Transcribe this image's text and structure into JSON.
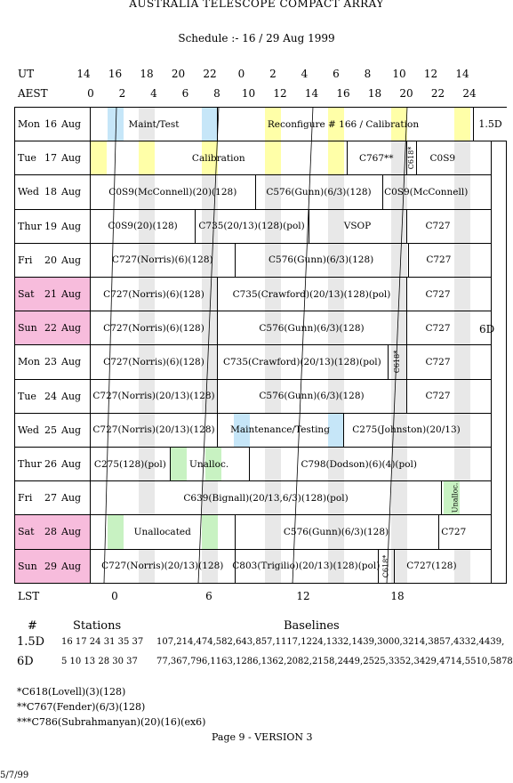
{
  "header": {
    "title": "AUSTRALIA TELESCOPE COMPACT ARRAY",
    "subtitle": "Schedule :- 16 / 29 Aug 1999"
  },
  "axes": {
    "ut_label": "UT",
    "aest_label": "AEST",
    "lst_label": "LST",
    "ut_ticks": [
      "14",
      "16",
      "18",
      "20",
      "22",
      "0",
      "2",
      "4",
      "6",
      "8",
      "10",
      "12",
      "14"
    ],
    "aest_ticks": [
      "0",
      "2",
      "4",
      "6",
      "8",
      "10",
      "12",
      "14",
      "16",
      "18",
      "20",
      "22",
      "24"
    ],
    "lst_ticks": [
      "0",
      "6",
      "12",
      "18"
    ]
  },
  "colors": {
    "yellow": "#ffffa8",
    "blue": "#c6e6f8",
    "green": "#c8f2c2",
    "grey": "#e8e8e8",
    "weekend": "#f7bcdc"
  },
  "rows": [
    {
      "day": "Mon",
      "num": "16",
      "month": "Aug",
      "weekend": false,
      "segments": [
        {
          "from": 0,
          "to": 8,
          "label": "Maint/Test"
        },
        {
          "from": 8,
          "to": 24,
          "label": "Reconfigure # 166 / Calibration"
        }
      ],
      "stripes": "test"
    },
    {
      "day": "Tue",
      "num": "17",
      "month": "Aug",
      "weekend": false,
      "segments": [
        {
          "from": 0,
          "to": 16.2,
          "label": "Calibration"
        },
        {
          "from": 16.2,
          "to": 20,
          "label": "C767**"
        },
        {
          "from": 20,
          "to": 20.6,
          "label": "C618*",
          "vertical": true
        },
        {
          "from": 20.6,
          "to": 24,
          "label": "C0S9"
        }
      ],
      "stripes": "cal"
    },
    {
      "day": "Wed",
      "num": "18",
      "month": "Aug",
      "weekend": false,
      "segments": [
        {
          "from": 0,
          "to": 10.4,
          "label": "C0S9(McConnell)(20)(128)"
        },
        {
          "from": 10.4,
          "to": 18.5,
          "label": "C576(Gunn)(6/3)(128)"
        },
        {
          "from": 18.5,
          "to": 24,
          "label": "C0S9(McConnell)"
        }
      ],
      "stripes": "grey"
    },
    {
      "day": "Thur",
      "num": "19",
      "month": "Aug",
      "weekend": false,
      "segments": [
        {
          "from": 0,
          "to": 6.6,
          "label": "C0S9(20)(128)"
        },
        {
          "from": 6.6,
          "to": 13.8,
          "label": "C735(20/13)(128)(pol)"
        },
        {
          "from": 13.8,
          "to": 20,
          "label": "VSOP"
        },
        {
          "from": 20,
          "to": 24,
          "label": "C727"
        }
      ],
      "stripes": "grey"
    },
    {
      "day": "Fri",
      "num": "20",
      "month": "Aug",
      "weekend": false,
      "segments": [
        {
          "from": 0,
          "to": 9.1,
          "label": "C727(Norris)(6)(128)"
        },
        {
          "from": 9.1,
          "to": 20.1,
          "label": "C576(Gunn)(6/3)(128)"
        },
        {
          "from": 20.1,
          "to": 24,
          "label": "C727"
        }
      ],
      "stripes": "grey"
    },
    {
      "day": "Sat",
      "num": "21",
      "month": "Aug",
      "weekend": true,
      "segments": [
        {
          "from": 0,
          "to": 8,
          "label": "C727(Norris)(6)(128)"
        },
        {
          "from": 8,
          "to": 20,
          "label": "C735(Crawford)(20/13)(128)(pol)"
        },
        {
          "from": 20,
          "to": 24,
          "label": "C727"
        }
      ],
      "stripes": "grey"
    },
    {
      "day": "Sun",
      "num": "22",
      "month": "Aug",
      "weekend": true,
      "segments": [
        {
          "from": 0,
          "to": 8,
          "label": "C727(Norris)(6)(128)"
        },
        {
          "from": 8,
          "to": 20,
          "label": "C576(Gunn)(6/3)(128)"
        },
        {
          "from": 20,
          "to": 24,
          "label": "C727"
        }
      ],
      "stripes": "grey"
    },
    {
      "day": "Mon",
      "num": "23",
      "month": "Aug",
      "weekend": false,
      "segments": [
        {
          "from": 0,
          "to": 8,
          "label": "C727(Norris)(6)(128)"
        },
        {
          "from": 8,
          "to": 18.8,
          "label": "C735(Crawford)(20/13)(128)(pol)"
        },
        {
          "from": 18.8,
          "to": 20,
          "label": "C618*",
          "vertical": true
        },
        {
          "from": 20,
          "to": 24,
          "label": "C727"
        }
      ],
      "stripes": "grey"
    },
    {
      "day": "Tue",
      "num": "24",
      "month": "Aug",
      "weekend": false,
      "segments": [
        {
          "from": 0,
          "to": 8,
          "label": "C727(Norris)(20/13)(128)"
        },
        {
          "from": 8,
          "to": 20,
          "label": "C576(Gunn)(6/3)(128)"
        },
        {
          "from": 20,
          "to": 24,
          "label": "C727"
        }
      ],
      "stripes": "grey"
    },
    {
      "day": "Wed",
      "num": "25",
      "month": "Aug",
      "weekend": false,
      "segments": [
        {
          "from": 0,
          "to": 8,
          "label": "C727(Norris)(20/13)(128)"
        },
        {
          "from": 8,
          "to": 16,
          "label": "Maintenance/Testing"
        },
        {
          "from": 16,
          "to": 24,
          "label": "C275(Johnston)(20/13)"
        }
      ],
      "stripes": "maint"
    },
    {
      "day": "Thur",
      "num": "26",
      "month": "Aug",
      "weekend": false,
      "segments": [
        {
          "from": 0,
          "to": 5,
          "label": "C275(128)(pol)"
        },
        {
          "from": 5,
          "to": 10,
          "label": "Unalloc."
        },
        {
          "from": 10,
          "to": 24,
          "label": "C798(Dodson)(6)(4)(pol)"
        }
      ],
      "stripes": "unalloc26"
    },
    {
      "day": "Fri",
      "num": "27",
      "month": "Aug",
      "weekend": false,
      "segments": [
        {
          "from": 0,
          "to": 22.2,
          "label": "C639(Bignall)(20/13,6/3)(128)(pol)"
        },
        {
          "from": 22.2,
          "to": 24,
          "label": "Unalloc.",
          "vertical": true
        }
      ],
      "stripes": "fri27"
    },
    {
      "day": "Sat",
      "num": "28",
      "month": "Aug",
      "weekend": true,
      "segments": [
        {
          "from": 0,
          "to": 9.1,
          "label": "Unallocated"
        },
        {
          "from": 9.1,
          "to": 22,
          "label": "C576(Gunn)(6/3)(128)"
        },
        {
          "from": 22,
          "to": 24,
          "label": "C727"
        }
      ],
      "stripes": "unalloc28"
    },
    {
      "day": "Sun",
      "num": "29",
      "month": "Aug",
      "weekend": true,
      "segments": [
        {
          "from": 0,
          "to": 9.1,
          "label": "C727(Norris)(20/13)(128)"
        },
        {
          "from": 9.1,
          "to": 18.2,
          "label": "C803(Trigilio)(20/13)(128)(pol)"
        },
        {
          "from": 18.2,
          "to": 19.2,
          "label": "C618*",
          "vertical": true
        },
        {
          "from": 19.2,
          "to": 24,
          "label": "C727(128)"
        }
      ],
      "stripes": "grey"
    }
  ],
  "configs": {
    "first": "1.5D",
    "second": "6D"
  },
  "stations_table": {
    "col_hash": "#",
    "col_stations": "Stations",
    "col_baselines": "Baselines",
    "rows": [
      {
        "config": "1.5D",
        "stations": "16 17 24 31 35 37",
        "baselines": "107,214,474,582,643,857,1117,1224,1332,1439,3000,3214,3857,4332,4439,"
      },
      {
        "config": "6D",
        "stations": "5 10 13 28 30 37",
        "baselines": "77,367,796,1163,1286,1362,2082,2158,2449,2525,3352,3429,4714,5510,5878,"
      }
    ]
  },
  "footnotes": [
    "*C618(Lovell)(3)(128)",
    "**C767(Fender)(6/3)(128)",
    "***C786(Subrahmanyan)(20)(16)(ex6)"
  ],
  "page_label": "Page 9 - VERSION 3",
  "date_stamp": "5/7/99"
}
